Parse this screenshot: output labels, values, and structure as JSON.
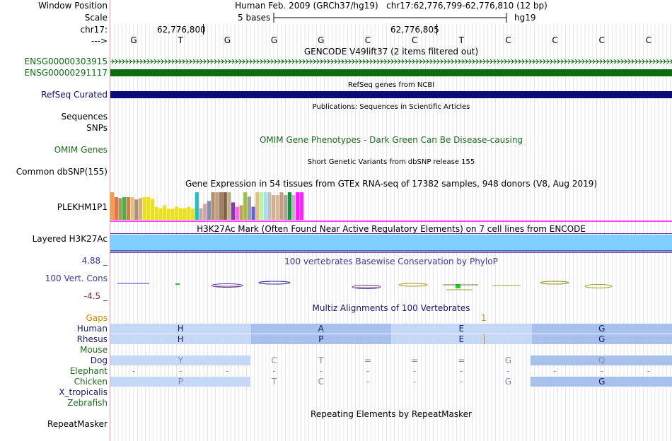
{
  "labels": {
    "window_position": "Window Position",
    "scale": "Scale",
    "chrom": "chr17:",
    "strand": "--->",
    "gencode_1": "ENSG00000303915",
    "gencode_2": "ENSG00000291117",
    "refseq": "RefSeq Curated",
    "sequences": "Sequences",
    "snps": "SNPs",
    "omim": "OMIM Genes",
    "dbsnp": "Common dbSNP(155)",
    "gtex": "PLEKHM1P1",
    "h3k27ac": "Layered H3K27Ac",
    "phylop_max": "4.88 _",
    "phylop": "100 Vert. Cons",
    "phylop_min": "-4.5 _",
    "gaps": "Gaps",
    "species": [
      "Human",
      "Rhesus",
      "Mouse",
      "Dog",
      "Elephant",
      "Chicken",
      "X_tropicalis",
      "Zebrafish"
    ],
    "repeatmasker": "RepeatMasker"
  },
  "ruler": {
    "assembly": "Human Feb. 2009 (GRCh37/hg19)",
    "position": "chr17:62,776,799-62,776,810 (12 bp)",
    "scale_text": "5 bases",
    "scale_db": "hg19",
    "coord_1": "62,776,800",
    "coord_2": "62,776,805",
    "bases": [
      "G",
      "T",
      "G",
      "G",
      "G",
      "C",
      "C",
      "T",
      "C",
      "C",
      "C",
      "C"
    ]
  },
  "titles": {
    "gencode": "GENCODE V49lift37 (2 items filtered out)",
    "refseq": "RefSeq genes from NCBI",
    "publications": "Publications: Sequences in Scientific Articles",
    "omim": "OMIM Gene Phenotypes - Dark Green Can Be Disease-causing",
    "dbsnp": "Short Genetic Variants from dbSNP release 155",
    "gtex": "Gene Expression in 54 tissues from GTEx RNA-seq of 17382 samples, 948 donors (V8, Aug 2019)",
    "h3k27ac": "H3K27Ac Mark (Often Found Near Active Regulatory Elements) on 7 cell lines from ENCODE",
    "phylop": "100 vertebrates Basewise Conservation by PhyloP",
    "multiz": "Multiz Alignments of 100 Vertebrates",
    "repeatmasker": "Repeating Elements by RepeatMasker"
  },
  "gap_mark": "1",
  "colors": {
    "gencode": "#0f6b0f",
    "refseq": "#0c0c78",
    "omim": "#1a6b1a",
    "phylop": "#3a3a9a",
    "phylop_min": "#8a2222",
    "gaps": "#d08a00",
    "h3k27ac": "#80d0ff",
    "gtex_line": "#ff40ff",
    "align_light": "#c6d8f8",
    "align_dark": "#a8c0ec"
  },
  "gtex_bars": [
    {
      "value": 0.95,
      "color": "#f5a040"
    },
    {
      "value": 0.78,
      "color": "#e87050"
    },
    {
      "value": 0.75,
      "color": "#a0a050"
    },
    {
      "value": 0.78,
      "color": "#40b050"
    },
    {
      "value": 0.78,
      "color": "#d08040"
    },
    {
      "value": 0.78,
      "color": "#e0c080"
    },
    {
      "value": 0.7,
      "color": "#b09070"
    },
    {
      "value": 0.75,
      "color": "#d0b090"
    },
    {
      "value": 0.78,
      "color": "#e8e020"
    },
    {
      "value": 0.78,
      "color": "#e8e020"
    },
    {
      "value": 0.72,
      "color": "#e8e020"
    },
    {
      "value": 0.45,
      "color": "#e8e020"
    },
    {
      "value": 0.4,
      "color": "#e8e020"
    },
    {
      "value": 0.5,
      "color": "#e8e020"
    },
    {
      "value": 0.38,
      "color": "#e8e020"
    },
    {
      "value": 0.38,
      "color": "#e8e020"
    },
    {
      "value": 0.45,
      "color": "#e8e020"
    },
    {
      "value": 0.4,
      "color": "#e8e020"
    },
    {
      "value": 0.4,
      "color": "#e8e020"
    },
    {
      "value": 0.45,
      "color": "#e8e020"
    },
    {
      "value": 0.38,
      "color": "#e8e020"
    },
    {
      "value": 0.95,
      "color": "#20c0c0"
    },
    {
      "value": 0.4,
      "color": "#b0b0b0"
    },
    {
      "value": 0.55,
      "color": "#d8a0a0"
    },
    {
      "value": 0.65,
      "color": "#8090b0"
    },
    {
      "value": 0.95,
      "color": "#b09070"
    },
    {
      "value": 0.95,
      "color": "#c0a080"
    },
    {
      "value": 0.95,
      "color": "#a08060"
    },
    {
      "value": 0.95,
      "color": "#806040"
    },
    {
      "value": 0.95,
      "color": "#c0b090"
    },
    {
      "value": 0.6,
      "color": "#8040a0"
    },
    {
      "value": 0.45,
      "color": "#ff60ff"
    },
    {
      "value": 0.5,
      "color": "#c0a060"
    },
    {
      "value": 0.95,
      "color": "#a0c040"
    },
    {
      "value": 0.8,
      "color": "#a0a0a0"
    },
    {
      "value": 0.45,
      "color": "#6060e0"
    },
    {
      "value": 0.95,
      "color": "#e0c080"
    },
    {
      "value": 0.95,
      "color": "#c0f0a0"
    },
    {
      "value": 0.95,
      "color": "#a0e0f0"
    },
    {
      "value": 0.95,
      "color": "#c0c0c0"
    },
    {
      "value": 0.85,
      "color": "#d0b090"
    },
    {
      "value": 0.85,
      "color": "#d8b898"
    },
    {
      "value": 0.95,
      "color": "#c0a080"
    },
    {
      "value": 0.85,
      "color": "#b0a090"
    },
    {
      "value": 0.95,
      "color": "#109040"
    },
    {
      "value": 0.85,
      "color": "#b8b8b8"
    },
    {
      "value": 0.95,
      "color": "#ff10ff"
    },
    {
      "value": 0.95,
      "color": "#ff20ff"
    }
  ],
  "multiz": {
    "human": [
      "H",
      "A",
      "E",
      "G"
    ],
    "rhesus": [
      "H",
      "P",
      "E",
      "G"
    ],
    "dog": [
      "Y",
      "C",
      "T",
      "=",
      "=",
      "=",
      "G",
      "Q"
    ],
    "elephant": [
      "-",
      "-",
      "-",
      "-",
      "-",
      "-",
      "-",
      "-",
      "-",
      "-",
      "-",
      "-"
    ],
    "chicken": [
      "P",
      "T",
      "C",
      "-",
      "-",
      "-",
      "G",
      "G"
    ]
  }
}
